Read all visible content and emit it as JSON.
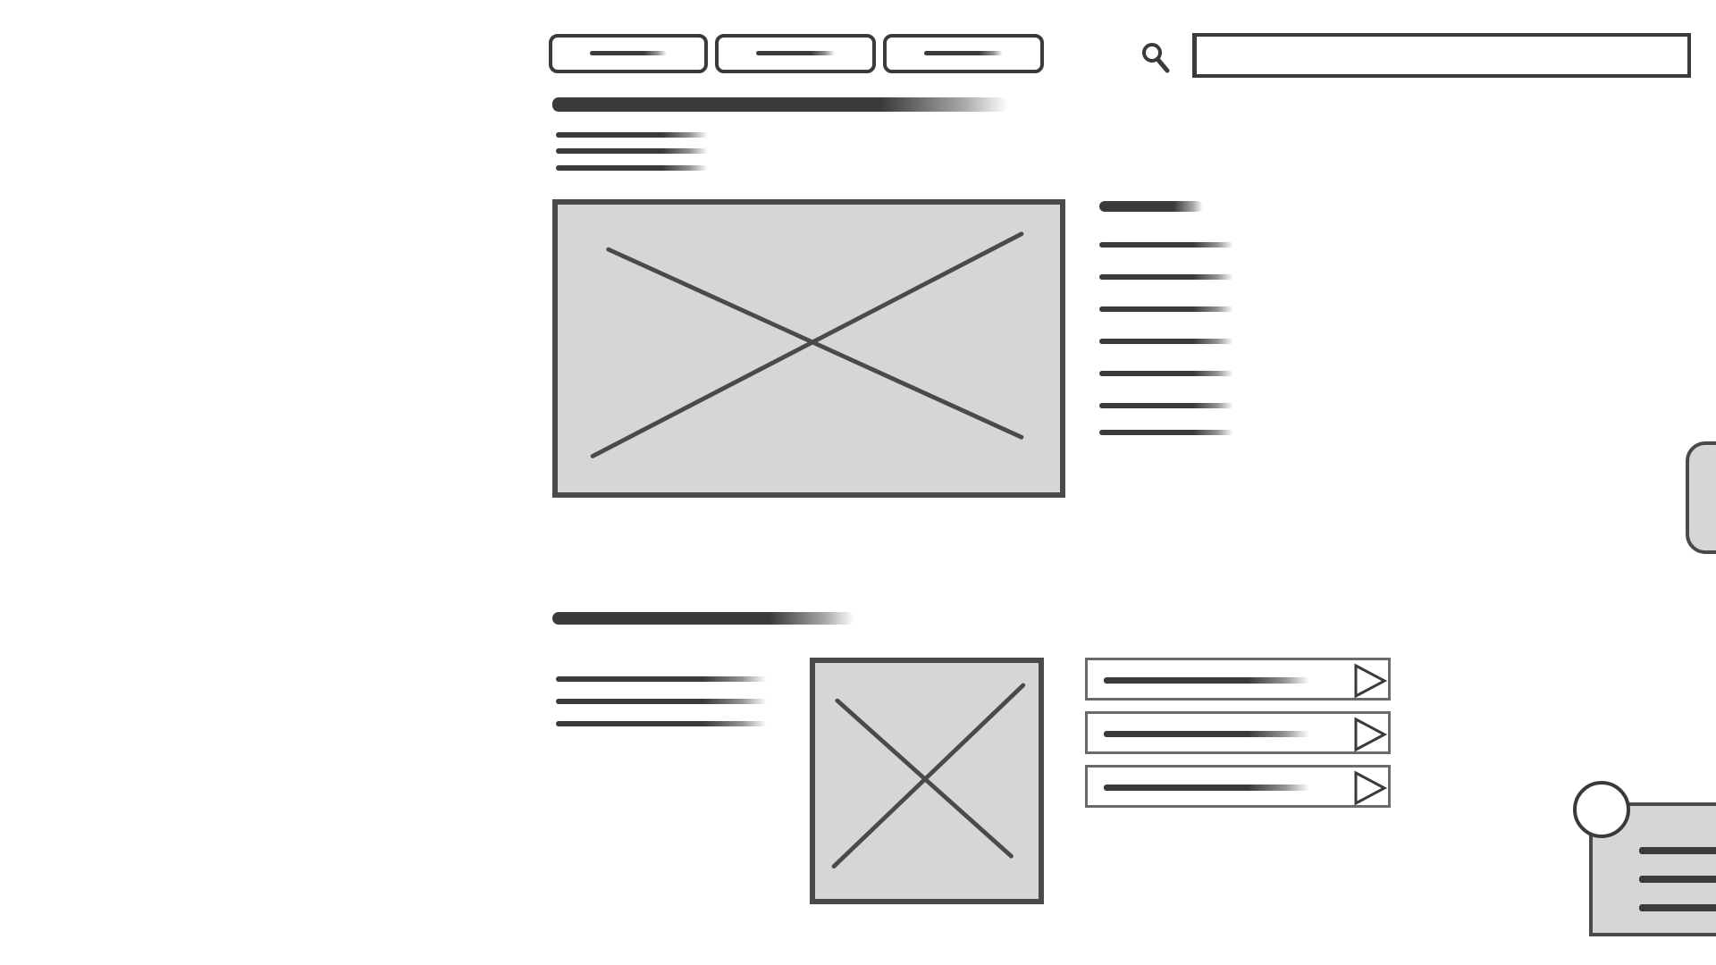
{
  "app": {
    "title": "",
    "style": "hand-drawn wireframe",
    "colors": {
      "ink": "#3a3a3a",
      "placeholder_fill": "#d6d6d6",
      "background": "#ffffff"
    }
  },
  "nav": {
    "buttons": [
      {
        "label": "",
        "icon": ""
      },
      {
        "label": "",
        "icon": ""
      },
      {
        "label": "",
        "icon": ""
      }
    ]
  },
  "search": {
    "icon": "search-icon",
    "placeholder": "",
    "value": ""
  },
  "hero": {
    "title": "",
    "description_lines": [
      "",
      "",
      ""
    ],
    "image": {
      "icon": "image-placeholder-icon"
    },
    "sidebar": {
      "heading": "",
      "items": [
        "",
        "",
        "",
        "",
        "",
        ""
      ]
    }
  },
  "section2": {
    "title": "",
    "description_lines": [
      "",
      "",
      ""
    ],
    "image": {
      "icon": "image-placeholder-icon"
    },
    "list": [
      {
        "label": "",
        "icon": "play-icon"
      },
      {
        "label": "",
        "icon": "play-icon"
      },
      {
        "label": "",
        "icon": "play-icon"
      }
    ]
  },
  "side_tab": {
    "label": ""
  },
  "chat_widget": {
    "avatar_icon": "avatar-icon",
    "lines": [
      "",
      "",
      ""
    ]
  }
}
